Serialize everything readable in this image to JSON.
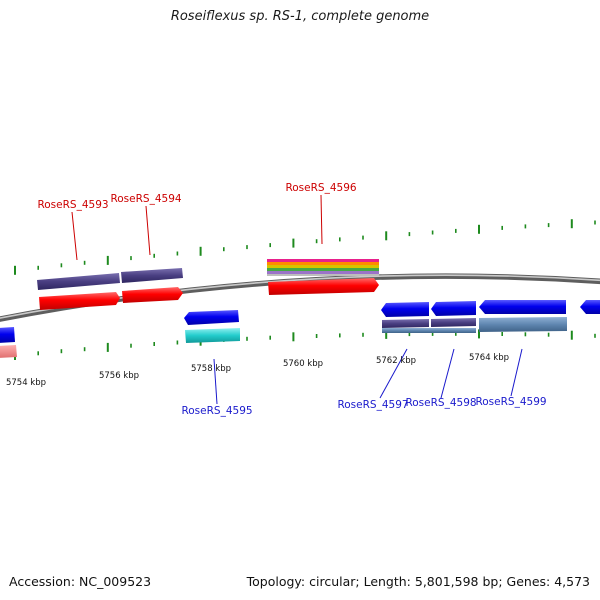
{
  "title": "Roseiflexus sp. RS-1, complete genome",
  "footer": {
    "accession": "Accession: NC_009523",
    "summary": "Topology: circular; Length: 5,801,598 bp; Genes: 4,573"
  },
  "scale": {
    "labels": [
      "5754 kbp",
      "5756 kbp",
      "5758 kbp",
      "5760 kbp",
      "5762 kbp",
      "5764 kbp"
    ]
  },
  "genes": {
    "forward": [
      "RoseRS_4593",
      "RoseRS_4594",
      "RoseRS_4596"
    ],
    "reverse": [
      "RoseRS_4595",
      "RoseRS_4597",
      "RoseRS_4598",
      "RoseRS_4599"
    ]
  },
  "colors": {
    "forward_label": "#cc0000",
    "reverse_label": "#1a1acc",
    "forward_cds": "#ff0000",
    "reverse_cds": "#0000ee",
    "gene_bar": "#4a3f82",
    "reverse_gene_bar": "#5f86b0",
    "trna": "#22cccc",
    "backbone": "#8c8c8c",
    "ticks": "#1e8a1e"
  }
}
